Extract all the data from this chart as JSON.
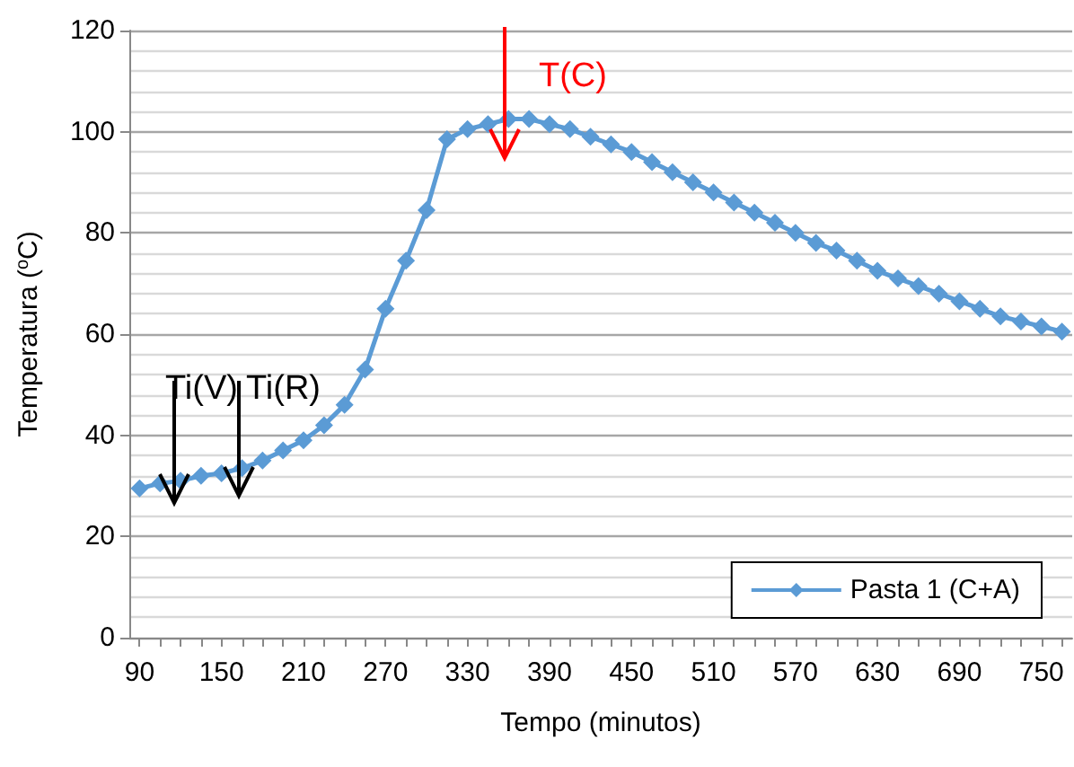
{
  "chart_data": {
    "type": "line",
    "xlabel": "Tempo (minutos)",
    "ylabel": "Temperatura ($^{o}$C)",
    "categories": [
      "90",
      null,
      null,
      null,
      "150",
      null,
      null,
      null,
      "210",
      null,
      null,
      null,
      "270",
      null,
      null,
      null,
      "330",
      null,
      null,
      null,
      "390",
      null,
      null,
      null,
      "450",
      null,
      null,
      null,
      "510",
      null,
      null,
      null,
      "570",
      null,
      null,
      null,
      "630",
      null,
      null,
      null,
      "690",
      null,
      null,
      null,
      "750",
      null
    ],
    "series": [
      {
        "name": "Pasta 1 (C+A)",
        "color": "#5b9bd5",
        "values": [
          29.5,
          30.5,
          31,
          32,
          32.5,
          33.5,
          35,
          37,
          39,
          42,
          46,
          53,
          65,
          74.5,
          84.5,
          98.5,
          100.5,
          101.5,
          102.5,
          102.5,
          101.5,
          100.5,
          99,
          97.5,
          96,
          94,
          92,
          90,
          88,
          86,
          84,
          82,
          80,
          78,
          76.5,
          74.5,
          72.5,
          71,
          69.5,
          68,
          66.5,
          65,
          63.5,
          62.5,
          61.5,
          60.5
        ]
      }
    ],
    "ylim": [
      0,
      120
    ],
    "yticks": [
      0,
      20,
      40,
      60,
      80,
      100,
      120
    ],
    "grid": "y",
    "legend": "bottom right",
    "marker": "diamond",
    "line_style": "solid",
    "annotations": [
      "Ti(V)",
      "Ti(R)",
      "T(C)"
    ]
  }
}
